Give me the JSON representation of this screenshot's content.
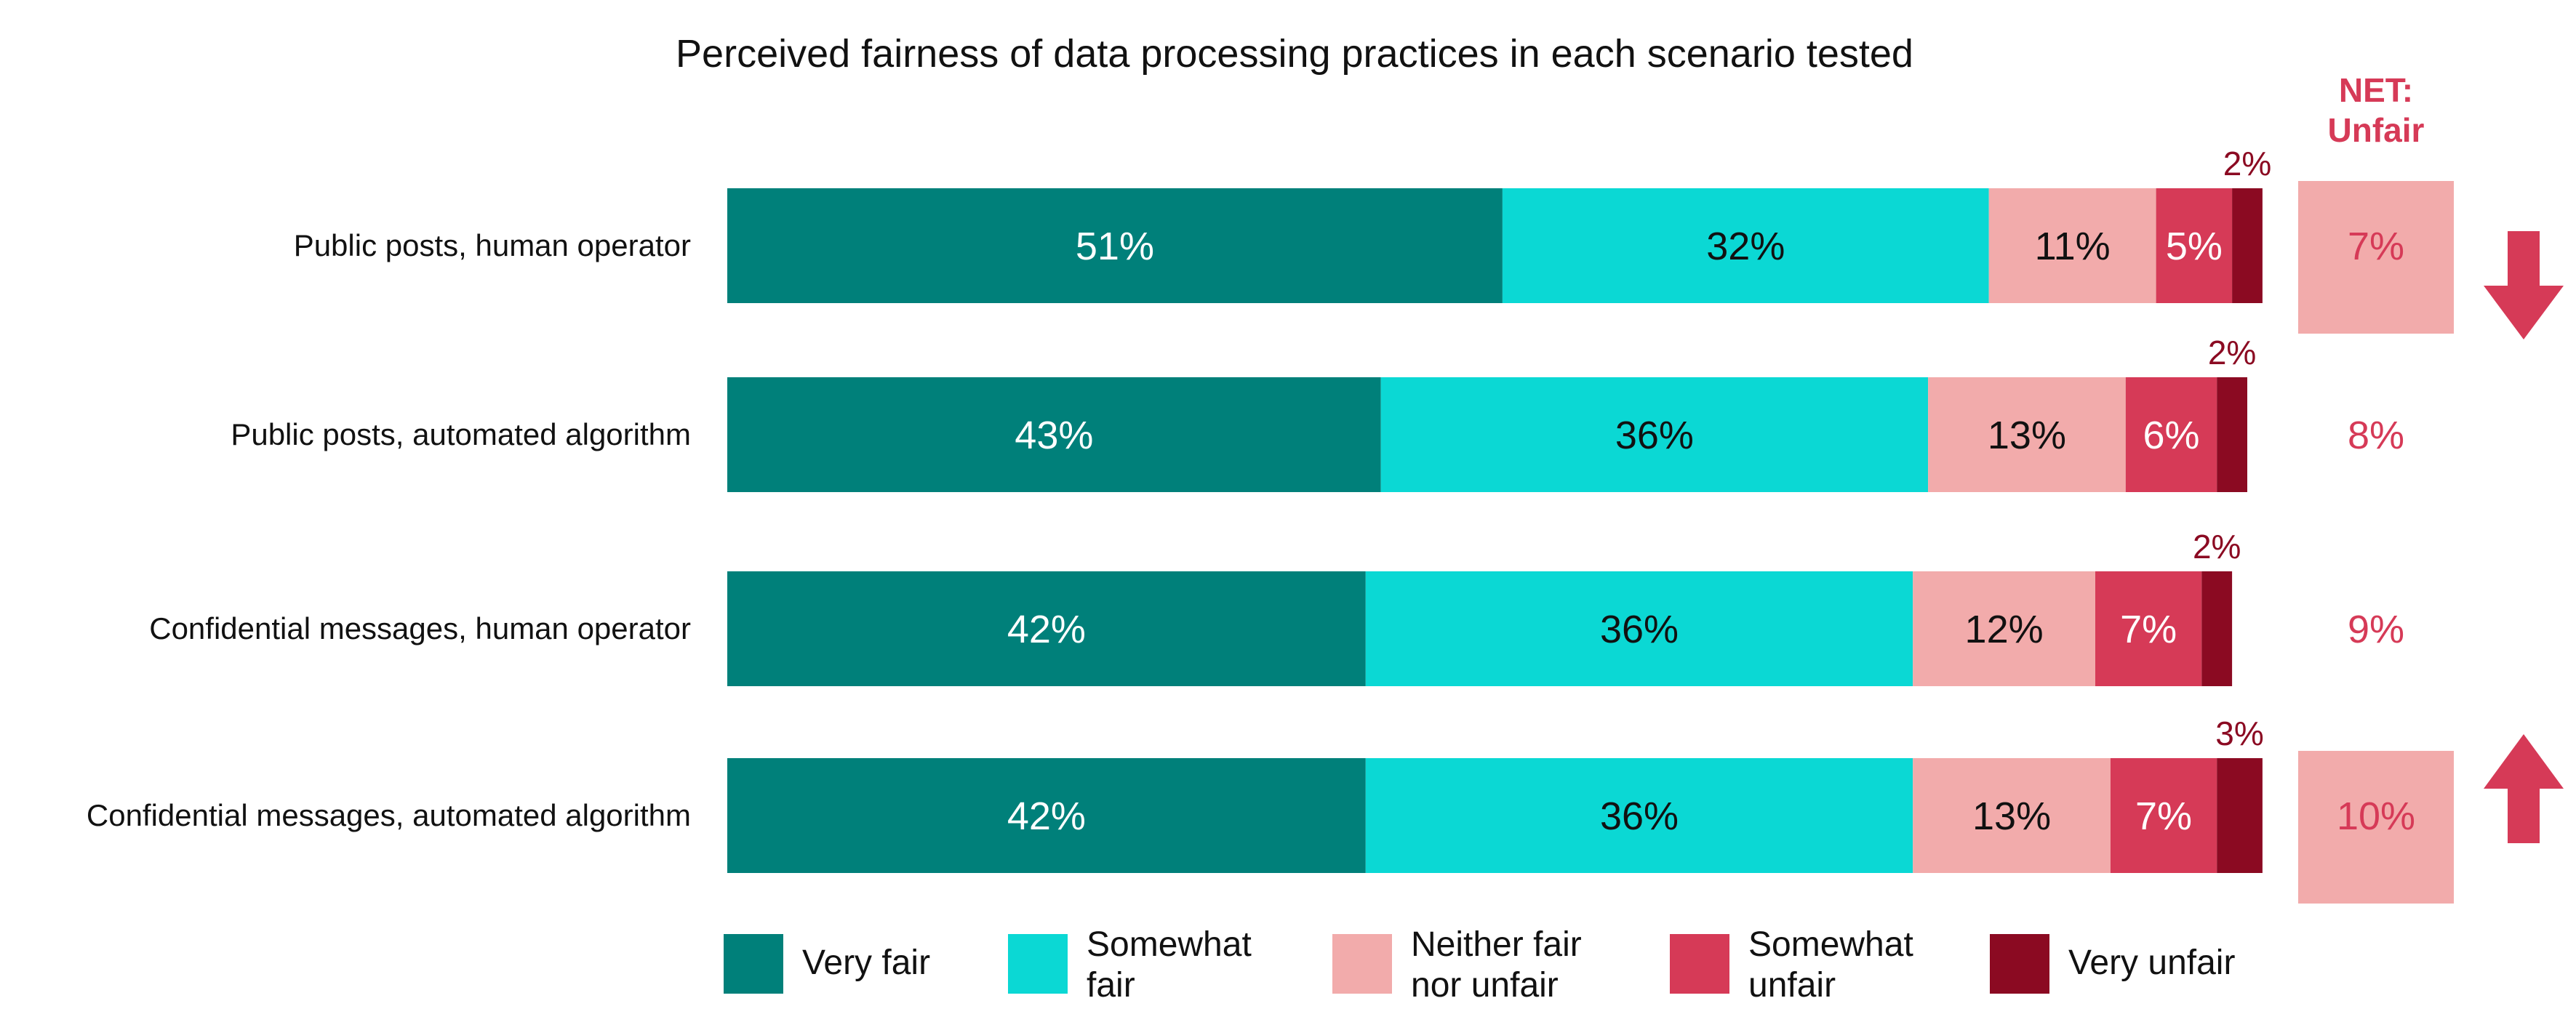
{
  "chart_data": {
    "type": "bar",
    "orientation": "horizontal",
    "stacked": true,
    "title": "Perceived fairness of data processing practices in each scenario tested",
    "categories": [
      "Public posts, human operator",
      "Public posts, automated algorithm",
      "Confidential messages, human operator",
      "Confidential messages, automated algorithm"
    ],
    "series": [
      {
        "name": "Very fair",
        "legend": [
          "Very fair"
        ],
        "color": "#00807a",
        "label_color": "#ffffff",
        "values": [
          51,
          43,
          42,
          42
        ]
      },
      {
        "name": "Somewhat fair",
        "legend": [
          "Somewhat",
          "fair"
        ],
        "color": "#0bd8d4",
        "label_color": "#111111",
        "values": [
          32,
          36,
          36,
          36
        ]
      },
      {
        "name": "Neither fair nor unfair",
        "legend": [
          "Neither fair",
          "nor unfair"
        ],
        "color": "#f2abab",
        "label_color": "#111111",
        "values": [
          11,
          13,
          12,
          13
        ]
      },
      {
        "name": "Somewhat unfair",
        "legend": [
          "Somewhat",
          "unfair"
        ],
        "color": "#d63a57",
        "label_color": "#ffffff",
        "values": [
          5,
          6,
          7,
          7
        ]
      },
      {
        "name": "Very unfair",
        "legend": [
          "Very unfair"
        ],
        "color": "#8b0a22",
        "label_color": "#8b0a22",
        "values": [
          2,
          2,
          2,
          3
        ]
      }
    ],
    "value_suffix": "%",
    "net": {
      "header": [
        "NET:",
        "Unfair"
      ],
      "values": [
        7,
        8,
        9,
        10
      ],
      "highlight": [
        true,
        false,
        false,
        true
      ],
      "highlight_color": "#f2abab",
      "text_color": "#d63a57",
      "arrows": [
        "down",
        null,
        null,
        "up"
      ]
    },
    "legend_position": "bottom",
    "grid": false
  }
}
